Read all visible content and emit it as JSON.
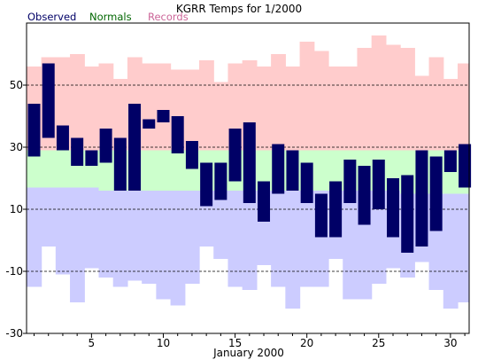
{
  "chart_data": {
    "type": "bar",
    "title": "KGRR Temps for 1/2000",
    "xlabel": "January 2000",
    "ylabel": "",
    "legend": {
      "placement": "top-left",
      "entries": [
        "Observed",
        "Normals",
        "Records"
      ]
    },
    "colors": {
      "observed": "#000066",
      "normals": "#ccffcc",
      "record_high": "#ffcccc",
      "record_low": "#ccccff",
      "observed_text": "#000066",
      "normals_text": "#006600",
      "records_text": "#cc6699"
    },
    "ylim": [
      -30,
      70
    ],
    "yticks": [
      -30,
      -10,
      10,
      30,
      50
    ],
    "xticks": [
      5,
      10,
      15,
      20,
      25,
      30
    ],
    "grid": "dashed horizontal at -10, 10, 30, 50",
    "days": [
      1,
      2,
      3,
      4,
      5,
      6,
      7,
      8,
      9,
      10,
      11,
      12,
      13,
      14,
      15,
      16,
      17,
      18,
      19,
      20,
      21,
      22,
      23,
      24,
      25,
      26,
      27,
      28,
      29,
      30,
      31
    ],
    "series": [
      {
        "name": "Observed",
        "high": [
          44,
          57,
          37,
          33,
          29,
          36,
          33,
          44,
          39,
          42,
          40,
          32,
          25,
          25,
          36,
          38,
          19,
          31,
          29,
          25,
          15,
          19,
          26,
          24,
          26,
          20,
          21,
          29,
          27,
          29,
          31
        ],
        "low": [
          27,
          33,
          29,
          24,
          24,
          25,
          16,
          16,
          36,
          38,
          28,
          23,
          11,
          13,
          19,
          12,
          6,
          15,
          16,
          12,
          1,
          1,
          12,
          5,
          10,
          1,
          -4,
          -2,
          3,
          22,
          17
        ]
      },
      {
        "name": "Normals",
        "high": [
          29,
          29,
          29,
          29,
          29,
          29,
          29,
          29,
          29,
          29,
          29,
          29,
          29,
          29,
          29,
          29,
          29,
          29,
          29,
          29,
          29,
          29,
          29,
          29,
          29,
          29,
          29,
          29,
          29,
          29,
          29
        ],
        "low": [
          17,
          17,
          17,
          17,
          17,
          16,
          16,
          16,
          16,
          16,
          16,
          16,
          16,
          16,
          16,
          16,
          16,
          16,
          16,
          16,
          16,
          16,
          16,
          16,
          16,
          16,
          15,
          15,
          15,
          15,
          15
        ]
      },
      {
        "name": "Records",
        "high": [
          56,
          59,
          59,
          60,
          56,
          57,
          52,
          59,
          57,
          57,
          55,
          55,
          58,
          51,
          57,
          58,
          56,
          60,
          56,
          64,
          61,
          56,
          56,
          62,
          66,
          63,
          62,
          53,
          59,
          52,
          57
        ],
        "low": [
          -15,
          -2,
          -11,
          -20,
          -9,
          -12,
          -15,
          -13,
          -14,
          -19,
          -21,
          -14,
          -2,
          -6,
          -15,
          -16,
          -8,
          -15,
          -22,
          -15,
          -15,
          -6,
          -19,
          -19,
          -14,
          -9,
          -12,
          -7,
          -16,
          -22,
          -20
        ]
      }
    ]
  }
}
